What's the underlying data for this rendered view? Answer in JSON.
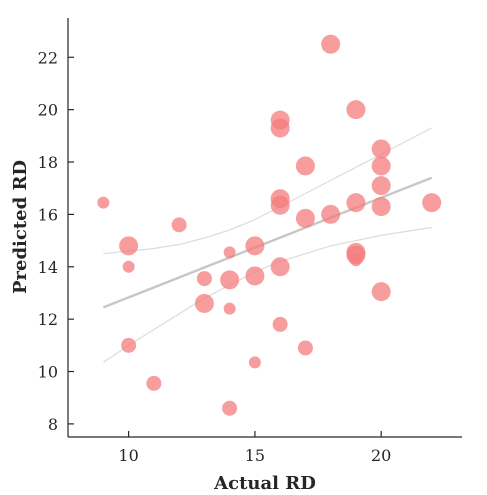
{
  "chart_data": {
    "type": "scatter",
    "title": "",
    "xlabel": "Actual RD",
    "ylabel": "Predicted RD",
    "xlim": [
      7.6,
      23.2
    ],
    "ylim": [
      7.5,
      23.5
    ],
    "xticks": [
      10,
      15,
      20
    ],
    "yticks": [
      8,
      10,
      12,
      14,
      16,
      18,
      20,
      22
    ],
    "grid": false,
    "legend": "none",
    "point_color": "#f47c7c",
    "point_opacity": 0.75,
    "fit_color": "#c7c7c7",
    "ci_color": "#dcdcdc",
    "points": [
      {
        "x": 9,
        "y": 16.45,
        "size": "small"
      },
      {
        "x": 10,
        "y": 14.8,
        "size": "large"
      },
      {
        "x": 10,
        "y": 14.0,
        "size": "small"
      },
      {
        "x": 10,
        "y": 11.0,
        "size": "medium"
      },
      {
        "x": 11,
        "y": 9.55,
        "size": "medium"
      },
      {
        "x": 12,
        "y": 15.6,
        "size": "medium"
      },
      {
        "x": 13,
        "y": 13.55,
        "size": "medium"
      },
      {
        "x": 13,
        "y": 12.6,
        "size": "large"
      },
      {
        "x": 14,
        "y": 14.55,
        "size": "small"
      },
      {
        "x": 14,
        "y": 13.5,
        "size": "large"
      },
      {
        "x": 14,
        "y": 12.4,
        "size": "small"
      },
      {
        "x": 14,
        "y": 8.6,
        "size": "medium"
      },
      {
        "x": 15,
        "y": 14.8,
        "size": "large"
      },
      {
        "x": 15,
        "y": 13.65,
        "size": "large"
      },
      {
        "x": 15,
        "y": 10.35,
        "size": "small"
      },
      {
        "x": 16,
        "y": 19.6,
        "size": "large"
      },
      {
        "x": 16,
        "y": 19.3,
        "size": "large"
      },
      {
        "x": 16,
        "y": 16.6,
        "size": "large"
      },
      {
        "x": 16,
        "y": 16.35,
        "size": "large"
      },
      {
        "x": 16,
        "y": 14.0,
        "size": "large"
      },
      {
        "x": 16,
        "y": 11.8,
        "size": "medium"
      },
      {
        "x": 17,
        "y": 17.85,
        "size": "large"
      },
      {
        "x": 17,
        "y": 15.85,
        "size": "large"
      },
      {
        "x": 17,
        "y": 10.9,
        "size": "medium"
      },
      {
        "x": 18,
        "y": 22.5,
        "size": "large"
      },
      {
        "x": 18,
        "y": 16.0,
        "size": "large"
      },
      {
        "x": 19,
        "y": 20.0,
        "size": "large"
      },
      {
        "x": 19,
        "y": 16.45,
        "size": "large"
      },
      {
        "x": 19,
        "y": 14.55,
        "size": "large"
      },
      {
        "x": 19,
        "y": 14.45,
        "size": "large"
      },
      {
        "x": 19,
        "y": 14.25,
        "size": "small"
      },
      {
        "x": 20,
        "y": 18.5,
        "size": "large"
      },
      {
        "x": 20,
        "y": 17.85,
        "size": "large"
      },
      {
        "x": 20,
        "y": 17.1,
        "size": "large"
      },
      {
        "x": 20,
        "y": 16.3,
        "size": "large"
      },
      {
        "x": 20,
        "y": 13.05,
        "size": "large"
      },
      {
        "x": 22,
        "y": 16.45,
        "size": "large"
      }
    ],
    "fit_line": {
      "x": [
        9,
        22
      ],
      "y": [
        12.45,
        17.4
      ]
    },
    "ci_upper": {
      "x": [
        9,
        10,
        11,
        12,
        13,
        14,
        15,
        16,
        17,
        18,
        19,
        20,
        21,
        22
      ],
      "y": [
        14.5,
        14.6,
        14.7,
        14.85,
        15.1,
        15.4,
        15.8,
        16.3,
        16.8,
        17.3,
        17.8,
        18.3,
        18.8,
        19.3
      ]
    },
    "ci_lower": {
      "x": [
        9,
        10,
        11,
        12,
        13,
        14,
        15,
        16,
        17,
        18,
        19,
        20,
        21,
        22
      ],
      "y": [
        10.35,
        11.0,
        11.6,
        12.2,
        12.8,
        13.3,
        13.8,
        14.2,
        14.5,
        14.8,
        15.0,
        15.2,
        15.35,
        15.5
      ]
    }
  }
}
